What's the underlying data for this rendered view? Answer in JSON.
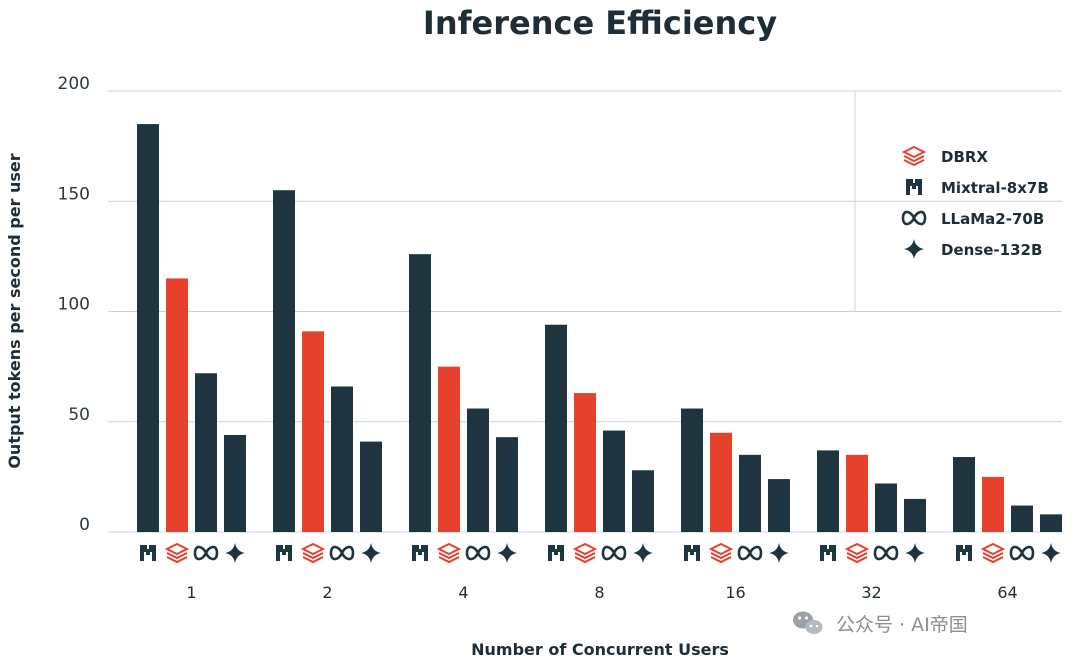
{
  "chart_data": {
    "type": "bar",
    "title": "Inference Efficiency",
    "xlabel": "Number of Concurrent Users",
    "ylabel": "Output tokens per second per user",
    "categories": [
      "1",
      "2",
      "4",
      "8",
      "16",
      "32",
      "64"
    ],
    "bar_order": [
      "Mixtral-8x7B",
      "DBRX",
      "LLaMa2-70B",
      "Dense-132B"
    ],
    "series": [
      {
        "name": "Mixtral-8x7B",
        "icon": "mistral-icon",
        "color": "#1e3540",
        "values": [
          185,
          155,
          126,
          94,
          56,
          37,
          34
        ]
      },
      {
        "name": "DBRX",
        "icon": "databricks-icon",
        "color": "#e5412d",
        "values": [
          115,
          91,
          75,
          63,
          45,
          35,
          25
        ]
      },
      {
        "name": "LLaMa2-70B",
        "icon": "meta-icon",
        "color": "#1e3540",
        "values": [
          72,
          66,
          56,
          46,
          35,
          22,
          12
        ]
      },
      {
        "name": "Dense-132B",
        "icon": "sparkle-icon",
        "color": "#1e3540",
        "values": [
          44,
          41,
          43,
          28,
          24,
          15,
          8
        ]
      }
    ],
    "legend_order": [
      "DBRX",
      "Mixtral-8x7B",
      "LLaMa2-70B",
      "Dense-132B"
    ],
    "yticks": [
      0,
      50,
      100,
      150,
      200
    ],
    "ylim": [
      0,
      200
    ],
    "grid": true,
    "legend_position": "top-right"
  },
  "watermark": {
    "icon": "wechat-icon",
    "text": "公众号 · AI帝国"
  }
}
